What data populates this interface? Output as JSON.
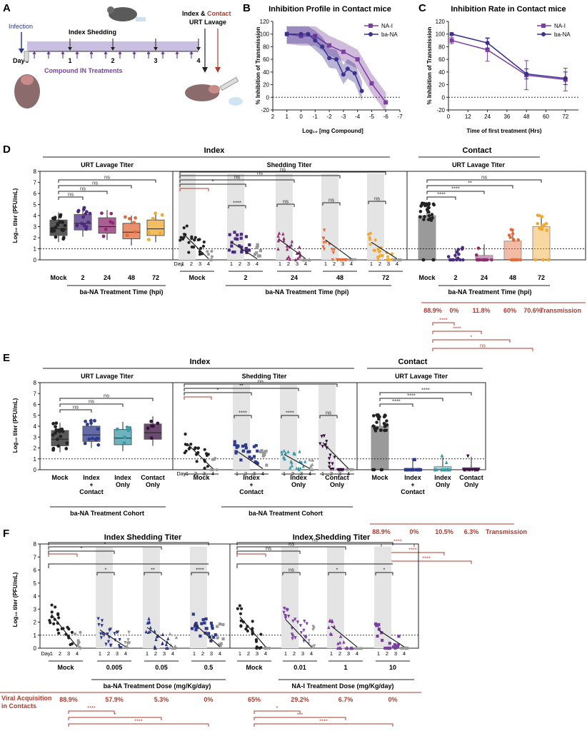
{
  "figure": {
    "colors": {
      "mock": "#222222",
      "purple": "#4b2a7f",
      "nai": "#7b3fa0",
      "magenta": "#8e2a6e",
      "orange": "#e36a3a",
      "yellow": "#f0a830",
      "navy": "#2e3a8c",
      "teal": "#3a9aa8",
      "dark": "#3a1040",
      "red": "#b03a2e",
      "grey": "#888888"
    },
    "panelA": {
      "label": "A",
      "infection": "Infection",
      "index_shedding": "Index Shedding",
      "compound": "Compound IN Treatments",
      "day": "Day",
      "days": [
        "0",
        "1",
        "2",
        "3",
        "4"
      ],
      "lavage_line1": "Index & ",
      "contact": "Contact",
      "lavage_line2": "URT Lavage"
    },
    "panelD": {
      "label": "D",
      "index": "Index",
      "contact": "Contact",
      "urt": "URT Lavage Titer",
      "shed": "Shedding Titer",
      "ylabel": "Log₁₀ titer (PFU/mL)",
      "cats": [
        "Mock",
        "2",
        "24",
        "48",
        "72"
      ],
      "xtitle": "ba-NA Treatment Time (hpi)",
      "day": "Day",
      "days": [
        "1",
        "2",
        "3",
        "4"
      ],
      "trans": [
        "88.9%",
        "0%",
        "11.8%",
        "60%",
        "70.6%"
      ],
      "trans_label": "Transmission",
      "ns": "ns",
      "s1": "*",
      "s2": "**",
      "s4": "****"
    },
    "panelE": {
      "label": "E",
      "index": "Index",
      "contact": "Contact",
      "urt": "URT Lavage Titer",
      "shed": "Shedding Titer",
      "ylabel": "Log₁₀ titer (PFU/mL)",
      "cats": [
        [
          "Mock"
        ],
        [
          "Index",
          "+",
          "Contact"
        ],
        [
          "Index",
          "Only"
        ],
        [
          "Contact",
          "Only"
        ]
      ],
      "xtitle": "ba-NA Treatment Cohort",
      "trans": [
        "88.9%",
        "0%",
        "10.5%",
        "6.3%"
      ],
      "trans_label": "Transmission",
      "ns": "ns",
      "s1": "*",
      "s2": "**",
      "s4": "****"
    },
    "panelF": {
      "label": "F",
      "title": "Index Shedding Titer",
      "ylabel": "Log₁₀ titer (PFU/mL)",
      "left_cats": [
        "Mock",
        "0.005",
        "0.05",
        "0.5"
      ],
      "right_cats": [
        "Mock",
        "0.01",
        "1",
        "10"
      ],
      "left_xtitle": "ba-NA Treatment Dose (mg/Kg/day)",
      "right_xtitle": "NA-I Treatment Dose (mg/Kg/day)",
      "viral1": "Viral Acquisition",
      "viral2": "in Contacts",
      "left_pct": [
        "88.9%",
        "57.9%",
        "5.3%",
        "0%"
      ],
      "right_pct": [
        "65%",
        "29.2%",
        "6.7%",
        "0%"
      ],
      "ns": "ns",
      "s1": "*",
      "s2": "**",
      "s3": "***",
      "s4": "****"
    }
  },
  "chart_data": [
    {
      "type": "scatter",
      "title": "Inhibition Profile in Contact mice",
      "label": "B",
      "xlabel": "Log₁₀ [mg Compound]",
      "ylabel": "% Inhibition of Transmission",
      "xlim": [
        2,
        -7
      ],
      "ylim": [
        -20,
        120
      ],
      "xticks": [
        "2",
        "1",
        "0",
        "-1",
        "-2",
        "-3",
        "-4",
        "-5",
        "-6",
        "-7"
      ],
      "yticks": [
        "-20",
        "0",
        "20",
        "40",
        "60",
        "80",
        "100",
        "120"
      ],
      "series": [
        {
          "name": "NA-I",
          "color": "#7b3fa0",
          "marker": "square",
          "x": [
            1,
            0,
            -1,
            -2,
            -3,
            -4,
            -5,
            -6
          ],
          "y": [
            100,
            97,
            97,
            82,
            72,
            60,
            22,
            -8
          ]
        },
        {
          "name": "ba-NA",
          "color": "#3b2f8f",
          "marker": "circle",
          "x": [
            1,
            0,
            -0.5,
            -1,
            -1.5,
            -2,
            -2.5,
            -3,
            -3.3,
            -3.8,
            -4.3
          ],
          "y": [
            100,
            100,
            100,
            90,
            80,
            62,
            60,
            36,
            45,
            38,
            10
          ]
        }
      ]
    },
    {
      "type": "line",
      "title": "Inhibition Rate in Contact mice",
      "label": "C",
      "xlabel": "Time of first treatment (Hrs)",
      "ylabel": "% Inhibition of Transmission",
      "xlim": [
        0,
        80
      ],
      "ylim": [
        -20,
        120
      ],
      "xticks": [
        "0",
        "12",
        "24",
        "36",
        "48",
        "60",
        "72"
      ],
      "yticks": [
        "-20",
        "0",
        "20",
        "40",
        "60",
        "80",
        "100",
        "120"
      ],
      "series": [
        {
          "name": "NA-I",
          "color": "#7b3fa0",
          "marker": "square",
          "x": [
            2,
            24,
            48,
            72
          ],
          "y": [
            90,
            75,
            35,
            28
          ],
          "err": [
            5,
            18,
            23,
            18
          ]
        },
        {
          "name": "ba-NA",
          "color": "#3b2f8f",
          "marker": "circle",
          "x": [
            2,
            24,
            48,
            72
          ],
          "y": [
            100,
            86,
            37,
            30
          ],
          "err": [
            2,
            8,
            8,
            10
          ]
        }
      ]
    }
  ]
}
